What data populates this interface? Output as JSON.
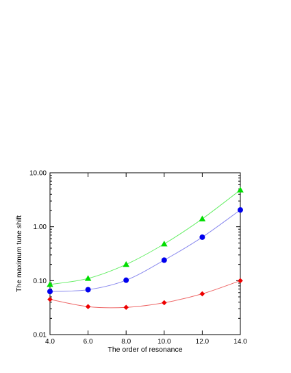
{
  "chart_data": {
    "type": "line",
    "title": "",
    "xlabel": "The order of resonance",
    "ylabel": "The maximum tune shift",
    "x": [
      4.0,
      6.0,
      8.0,
      10.0,
      12.0,
      14.0
    ],
    "xlim": [
      4.0,
      14.0
    ],
    "ylim": [
      0.01,
      10.0
    ],
    "yscale": "log",
    "grid": false,
    "legend": "none",
    "x_tick_labels": [
      "4.0",
      "6.0",
      "8.0",
      "10.0",
      "12.0",
      "14.0"
    ],
    "y_ticks": [
      0.01,
      0.1,
      1.0,
      10.0
    ],
    "y_tick_labels": [
      "0.01",
      "0.10",
      "1.00",
      "10.00"
    ],
    "series": [
      {
        "marker": "triangle",
        "color": "#00dd00",
        "line_color": "#66ee66",
        "values": [
          0.085,
          0.11,
          0.2,
          0.48,
          1.4,
          4.8
        ]
      },
      {
        "marker": "circle",
        "color": "#0000ee",
        "line_color": "#8888ee",
        "values": [
          0.063,
          0.068,
          0.102,
          0.24,
          0.64,
          2.05
        ]
      },
      {
        "marker": "diamond",
        "color": "#ee0000",
        "line_color": "#ee6666",
        "values": [
          0.045,
          0.033,
          0.032,
          0.039,
          0.057,
          0.1
        ]
      }
    ]
  }
}
